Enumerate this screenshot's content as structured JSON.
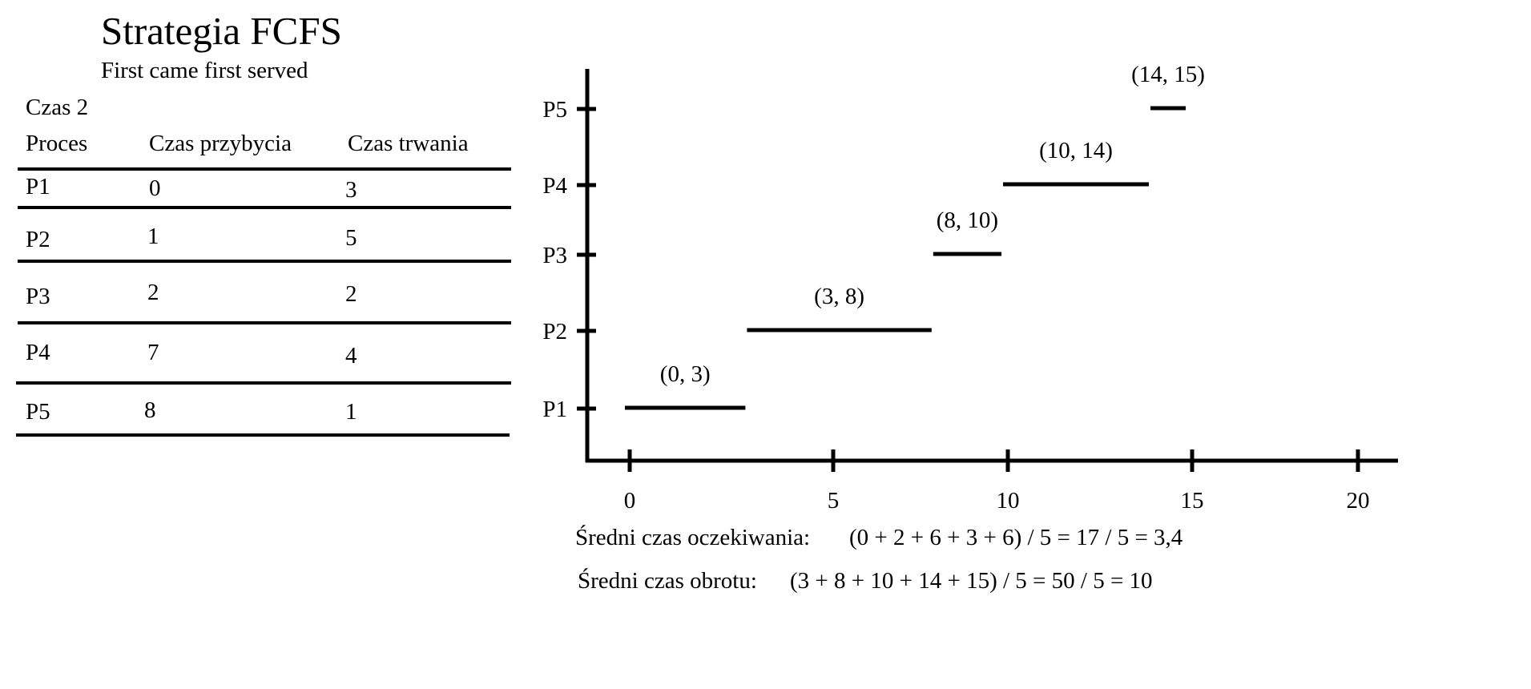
{
  "title": "Strategia FCFS",
  "subtitle": "First came first served",
  "czas_label": "Czas 2",
  "table": {
    "headers": [
      "Proces",
      "Czas przybycia",
      "Czas trwania"
    ],
    "rows": [
      [
        "P1",
        "0",
        "3"
      ],
      [
        "P2",
        "1",
        "5"
      ],
      [
        "P3",
        "2",
        "2"
      ],
      [
        "P4",
        "7",
        "4"
      ],
      [
        "P5",
        "8",
        "1"
      ]
    ]
  },
  "chart_data": {
    "type": "gantt",
    "x_ticks": [
      0,
      5,
      10,
      15,
      20
    ],
    "x_range": [
      0,
      20
    ],
    "y_categories": [
      "P1",
      "P2",
      "P3",
      "P4",
      "P5"
    ],
    "bars": [
      {
        "process": "P1",
        "start": 0,
        "end": 3,
        "label": "(0, 3)"
      },
      {
        "process": "P2",
        "start": 3,
        "end": 8,
        "label": "(3, 8)"
      },
      {
        "process": "P3",
        "start": 8,
        "end": 10,
        "label": "(8, 10)"
      },
      {
        "process": "P4",
        "start": 10,
        "end": 14,
        "label": "(10, 14)"
      },
      {
        "process": "P5",
        "start": 14,
        "end": 15,
        "label": "(14, 15)"
      }
    ]
  },
  "formulas": {
    "wait_label": "Średni czas oczekiwania:",
    "wait_expr": "(0 + 2 + 6 + 3 + 6) / 5 = 17 / 5 = 3,4",
    "turnaround_label": "Średni czas obrotu:",
    "turnaround_expr": "(3 + 8 + 10 + 14 + 15) / 5 = 50 / 5 = 10"
  }
}
